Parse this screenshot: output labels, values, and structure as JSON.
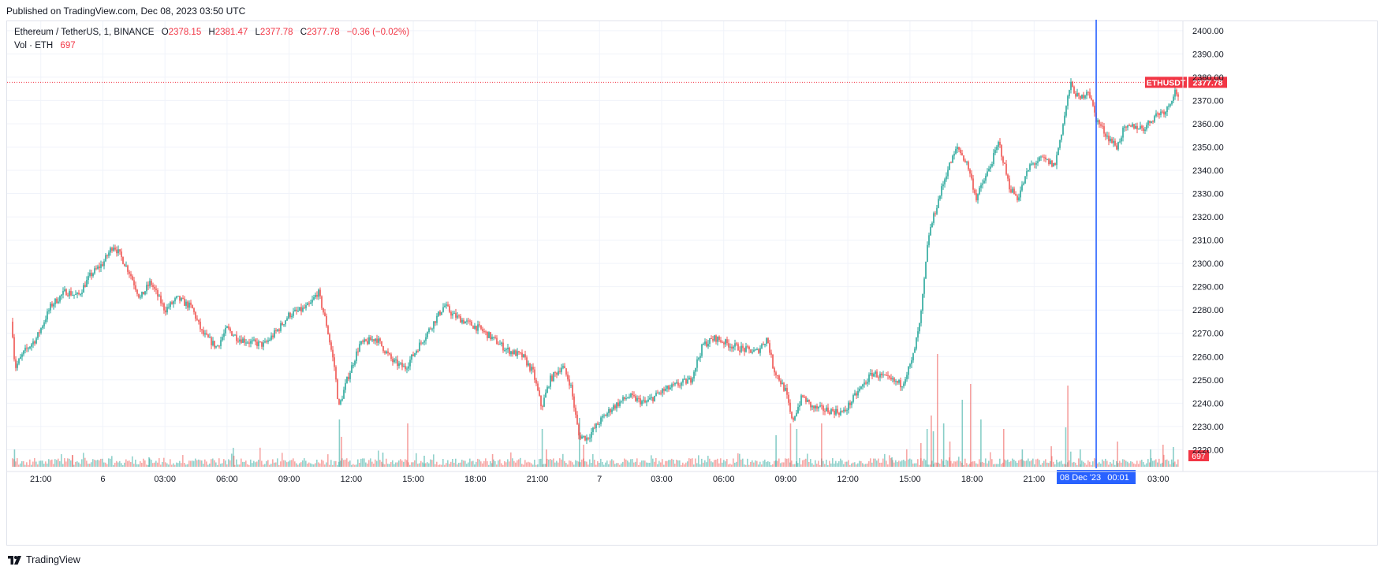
{
  "published": "Published on TradingView.com, Dec 08, 2023 03:50 UTC",
  "legend": {
    "symbol": "Ethereum / TetherUS, 1, BINANCE",
    "o_label": "O",
    "o": "2378.15",
    "h_label": "H",
    "h": "2381.47",
    "l_label": "L",
    "l": "2377.78",
    "c_label": "C",
    "c": "2377.78",
    "change": "−0.36 (−0.02%)",
    "vol_label": "Vol · ETH",
    "vol": "697"
  },
  "footer": {
    "brand": "TradingView",
    "logo_icon": "tradingview-logo-icon"
  },
  "colors": {
    "up": "#26a69a",
    "down": "#ef5350",
    "crosshair": "#2962ff",
    "last_price": "#f23645",
    "grid": "#f0f3fa"
  },
  "chart_data": {
    "type": "candlestick",
    "symbol": "ETHUSDT",
    "interval": "1 minute",
    "ylim": [
      2212,
      2404
    ],
    "y_ticks": [
      2220,
      2230,
      2240,
      2250,
      2260,
      2270,
      2280,
      2290,
      2300,
      2310,
      2320,
      2330,
      2340,
      2350,
      2360,
      2370,
      2380,
      2390,
      2400
    ],
    "y_tick_labels": [
      "2220.00",
      "2230.00",
      "2240.00",
      "2250.00",
      "2260.00",
      "2270.00",
      "2280.00",
      "2290.00",
      "2300.00",
      "2310.00",
      "2320.00",
      "2330.00",
      "2340.00",
      "2350.00",
      "2360.00",
      "2370.00",
      "2380.00",
      "2390.00",
      "2400.00"
    ],
    "x_ticks": [
      {
        "label": "21:00",
        "t": 21
      },
      {
        "label": "6",
        "t": 24
      },
      {
        "label": "03:00",
        "t": 27
      },
      {
        "label": "06:00",
        "t": 30
      },
      {
        "label": "09:00",
        "t": 33
      },
      {
        "label": "12:00",
        "t": 36
      },
      {
        "label": "15:00",
        "t": 39
      },
      {
        "label": "18:00",
        "t": 42
      },
      {
        "label": "21:00",
        "t": 45
      },
      {
        "label": "7",
        "t": 48
      },
      {
        "label": "03:00",
        "t": 51
      },
      {
        "label": "06:00",
        "t": 54
      },
      {
        "label": "09:00",
        "t": 57
      },
      {
        "label": "12:00",
        "t": 60
      },
      {
        "label": "15:00",
        "t": 63
      },
      {
        "label": "18:00",
        "t": 66
      },
      {
        "label": "21:00",
        "t": 69
      },
      {
        "label": "03:00",
        "t": 75
      }
    ],
    "x_range": [
      19.6,
      76.0
    ],
    "price_path": [
      [
        19.6,
        2275
      ],
      [
        19.75,
        2255
      ],
      [
        20.2,
        2262
      ],
      [
        20.8,
        2268
      ],
      [
        21.5,
        2282
      ],
      [
        22.2,
        2288
      ],
      [
        22.8,
        2286
      ],
      [
        23.4,
        2295
      ],
      [
        24.0,
        2300
      ],
      [
        24.5,
        2308
      ],
      [
        24.8,
        2304
      ],
      [
        25.3,
        2296
      ],
      [
        25.8,
        2285
      ],
      [
        26.3,
        2292
      ],
      [
        27.0,
        2280
      ],
      [
        27.6,
        2285
      ],
      [
        28.3,
        2281
      ],
      [
        28.8,
        2270
      ],
      [
        29.5,
        2264
      ],
      [
        30.0,
        2272
      ],
      [
        30.5,
        2268
      ],
      [
        31.2,
        2266
      ],
      [
        31.8,
        2265
      ],
      [
        32.5,
        2272
      ],
      [
        33.0,
        2278
      ],
      [
        33.6,
        2280
      ],
      [
        34.0,
        2282
      ],
      [
        34.4,
        2288
      ],
      [
        34.8,
        2274
      ],
      [
        35.2,
        2255
      ],
      [
        35.4,
        2238
      ],
      [
        35.8,
        2250
      ],
      [
        36.4,
        2265
      ],
      [
        37.2,
        2268
      ],
      [
        38.0,
        2258
      ],
      [
        38.6,
        2255
      ],
      [
        39.3,
        2265
      ],
      [
        39.8,
        2272
      ],
      [
        40.5,
        2282
      ],
      [
        40.9,
        2278
      ],
      [
        41.5,
        2275
      ],
      [
        42.2,
        2272
      ],
      [
        42.8,
        2268
      ],
      [
        43.5,
        2263
      ],
      [
        44.3,
        2260
      ],
      [
        44.8,
        2253
      ],
      [
        45.2,
        2238
      ],
      [
        45.6,
        2250
      ],
      [
        46.2,
        2256
      ],
      [
        46.6,
        2248
      ],
      [
        47.0,
        2226
      ],
      [
        47.4,
        2225
      ],
      [
        48.0,
        2232
      ],
      [
        48.6,
        2238
      ],
      [
        49.4,
        2243
      ],
      [
        50.2,
        2240
      ],
      [
        51.0,
        2245
      ],
      [
        51.8,
        2248
      ],
      [
        52.4,
        2250
      ],
      [
        53.0,
        2265
      ],
      [
        53.6,
        2268
      ],
      [
        54.3,
        2265
      ],
      [
        55.0,
        2263
      ],
      [
        55.6,
        2262
      ],
      [
        56.1,
        2268
      ],
      [
        56.4,
        2255
      ],
      [
        57.0,
        2245
      ],
      [
        57.3,
        2232
      ],
      [
        57.8,
        2243
      ],
      [
        58.3,
        2238
      ],
      [
        59.0,
        2237
      ],
      [
        59.8,
        2236
      ],
      [
        60.5,
        2245
      ],
      [
        61.2,
        2253
      ],
      [
        62.0,
        2250
      ],
      [
        62.6,
        2248
      ],
      [
        63.1,
        2258
      ],
      [
        63.5,
        2275
      ],
      [
        63.9,
        2312
      ],
      [
        64.3,
        2325
      ],
      [
        64.8,
        2340
      ],
      [
        65.3,
        2350
      ],
      [
        65.8,
        2342
      ],
      [
        66.2,
        2328
      ],
      [
        66.8,
        2340
      ],
      [
        67.3,
        2352
      ],
      [
        67.8,
        2333
      ],
      [
        68.2,
        2328
      ],
      [
        68.8,
        2342
      ],
      [
        69.4,
        2345
      ],
      [
        70.0,
        2342
      ],
      [
        70.4,
        2360
      ],
      [
        70.75,
        2377
      ],
      [
        71.2,
        2370
      ],
      [
        71.6,
        2375
      ],
      [
        72.0,
        2362
      ],
      [
        72.5,
        2355
      ],
      [
        73.0,
        2350
      ],
      [
        73.3,
        2357
      ],
      [
        73.8,
        2359
      ],
      [
        74.3,
        2358
      ],
      [
        74.9,
        2364
      ],
      [
        75.4,
        2366
      ],
      [
        75.8,
        2374
      ],
      [
        76.0,
        2372
      ]
    ],
    "volume_spikes": [
      [
        19.7,
        22
      ],
      [
        22.5,
        15
      ],
      [
        26.2,
        12
      ],
      [
        30.3,
        14
      ],
      [
        35.4,
        60
      ],
      [
        35.5,
        38
      ],
      [
        37.5,
        18
      ],
      [
        38.7,
        55
      ],
      [
        39.5,
        14
      ],
      [
        42.8,
        16
      ],
      [
        45.2,
        48
      ],
      [
        45.4,
        22
      ],
      [
        47.0,
        62
      ],
      [
        47.2,
        28
      ],
      [
        56.5,
        40
      ],
      [
        57.2,
        55
      ],
      [
        57.5,
        48
      ],
      [
        58.7,
        55
      ],
      [
        62.1,
        12
      ],
      [
        63.5,
        30
      ],
      [
        63.8,
        48
      ],
      [
        64.0,
        65
      ],
      [
        64.1,
        45
      ],
      [
        64.3,
        143
      ],
      [
        64.6,
        55
      ],
      [
        64.9,
        32
      ],
      [
        65.5,
        85
      ],
      [
        65.9,
        105
      ],
      [
        66.4,
        60
      ],
      [
        67.5,
        48
      ],
      [
        68.4,
        22
      ],
      [
        69.8,
        26
      ],
      [
        70.5,
        50
      ],
      [
        70.6,
        103
      ],
      [
        71.2,
        22
      ],
      [
        73.0,
        32
      ],
      [
        74.6,
        22
      ],
      [
        75.2,
        28
      ],
      [
        75.7,
        25
      ]
    ],
    "volume_max": 150,
    "last_price": 2377.78,
    "last_price_label": "2377.78",
    "last_symbol_label": "ETHUSDT",
    "last_volume_label": "697",
    "crosshair": {
      "t": 72.0,
      "date_label": "08 Dec '23",
      "time_label": "00:01"
    }
  }
}
